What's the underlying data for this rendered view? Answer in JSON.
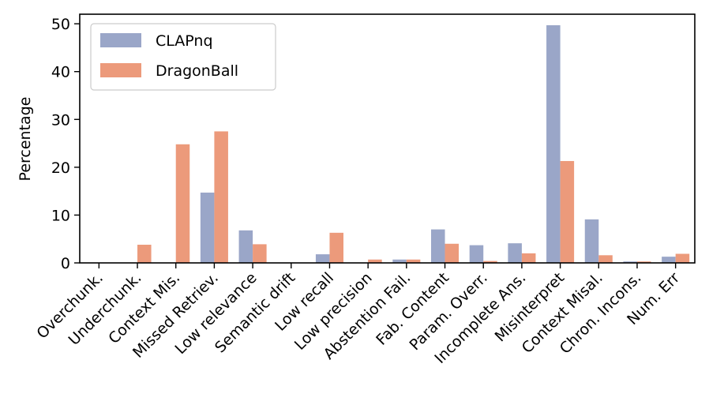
{
  "chart_data": {
    "type": "bar",
    "title": "",
    "xlabel": "",
    "ylabel": "Percentage",
    "ylim": [
      0,
      52
    ],
    "yticks": [
      0,
      10,
      20,
      30,
      40,
      50
    ],
    "grid": false,
    "legend_position": "top-left",
    "categories": [
      "Overchunk.",
      "Underchunk.",
      "Context Mis.",
      "Missed Retriev.",
      "Low relevance",
      "Semantic drift",
      "Low recall",
      "Low precision",
      "Abstention Fail.",
      "Fab. Content",
      "Param. Overr.",
      "Incomplete Ans.",
      "Misinterpret",
      "Context Misal.",
      "Chron. Incons.",
      "Num. Err"
    ],
    "series": [
      {
        "name": "CLAPnq",
        "color": "#9aa6c8",
        "values": [
          0,
          0,
          0,
          14.7,
          6.8,
          0,
          1.8,
          0,
          0.7,
          7.0,
          3.7,
          4.1,
          49.7,
          9.1,
          0.3,
          1.3
        ]
      },
      {
        "name": "DragonBall",
        "color": "#ec9a7b",
        "values": [
          0,
          3.8,
          24.8,
          27.5,
          3.9,
          0,
          6.3,
          0.7,
          0.7,
          4.0,
          0.4,
          2.0,
          21.3,
          1.6,
          0.3,
          1.9
        ]
      }
    ]
  }
}
